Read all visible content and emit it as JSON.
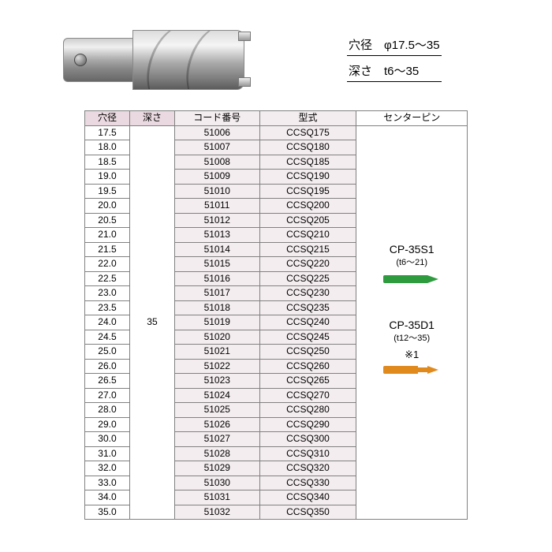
{
  "spec": {
    "diameter_line": "穴径　φ17.5～35",
    "depth_line": "深さ　t6～35"
  },
  "table": {
    "headers": {
      "diameter": "穴径",
      "depth": "深さ",
      "code": "コード番号",
      "model": "型式",
      "centerpin": "センターピン"
    },
    "depth_merged": "35",
    "rows": [
      {
        "dia": "17.5",
        "code": "51006",
        "model": "CCSQ175"
      },
      {
        "dia": "18.0",
        "code": "51007",
        "model": "CCSQ180"
      },
      {
        "dia": "18.5",
        "code": "51008",
        "model": "CCSQ185"
      },
      {
        "dia": "19.0",
        "code": "51009",
        "model": "CCSQ190"
      },
      {
        "dia": "19.5",
        "code": "51010",
        "model": "CCSQ195"
      },
      {
        "dia": "20.0",
        "code": "51011",
        "model": "CCSQ200"
      },
      {
        "dia": "20.5",
        "code": "51012",
        "model": "CCSQ205"
      },
      {
        "dia": "21.0",
        "code": "51013",
        "model": "CCSQ210"
      },
      {
        "dia": "21.5",
        "code": "51014",
        "model": "CCSQ215"
      },
      {
        "dia": "22.0",
        "code": "51015",
        "model": "CCSQ220"
      },
      {
        "dia": "22.5",
        "code": "51016",
        "model": "CCSQ225"
      },
      {
        "dia": "23.0",
        "code": "51017",
        "model": "CCSQ230"
      },
      {
        "dia": "23.5",
        "code": "51018",
        "model": "CCSQ235"
      },
      {
        "dia": "24.0",
        "code": "51019",
        "model": "CCSQ240"
      },
      {
        "dia": "24.5",
        "code": "51020",
        "model": "CCSQ245"
      },
      {
        "dia": "25.0",
        "code": "51021",
        "model": "CCSQ250"
      },
      {
        "dia": "26.0",
        "code": "51022",
        "model": "CCSQ260"
      },
      {
        "dia": "26.5",
        "code": "51023",
        "model": "CCSQ265"
      },
      {
        "dia": "27.0",
        "code": "51024",
        "model": "CCSQ270"
      },
      {
        "dia": "28.0",
        "code": "51025",
        "model": "CCSQ280"
      },
      {
        "dia": "29.0",
        "code": "51026",
        "model": "CCSQ290"
      },
      {
        "dia": "30.0",
        "code": "51027",
        "model": "CCSQ300"
      },
      {
        "dia": "31.0",
        "code": "51028",
        "model": "CCSQ310"
      },
      {
        "dia": "32.0",
        "code": "51029",
        "model": "CCSQ320"
      },
      {
        "dia": "33.0",
        "code": "51030",
        "model": "CCSQ330"
      },
      {
        "dia": "34.0",
        "code": "51031",
        "model": "CCSQ340"
      },
      {
        "dia": "35.0",
        "code": "51032",
        "model": "CCSQ350"
      }
    ],
    "centerpin": {
      "pin1": {
        "label": "CP-35S1",
        "sub": "(t6～21)",
        "color": "#2e9b3f"
      },
      "pin2": {
        "label": "CP-35D1",
        "sub": "(t12～35)",
        "note": "※1",
        "color": "#e08a1e"
      }
    }
  },
  "colors": {
    "header_bg": "#ead9e0",
    "cell_tinted_bg": "#f4edf0",
    "border": "#808080",
    "page_bg": "#ffffff"
  }
}
